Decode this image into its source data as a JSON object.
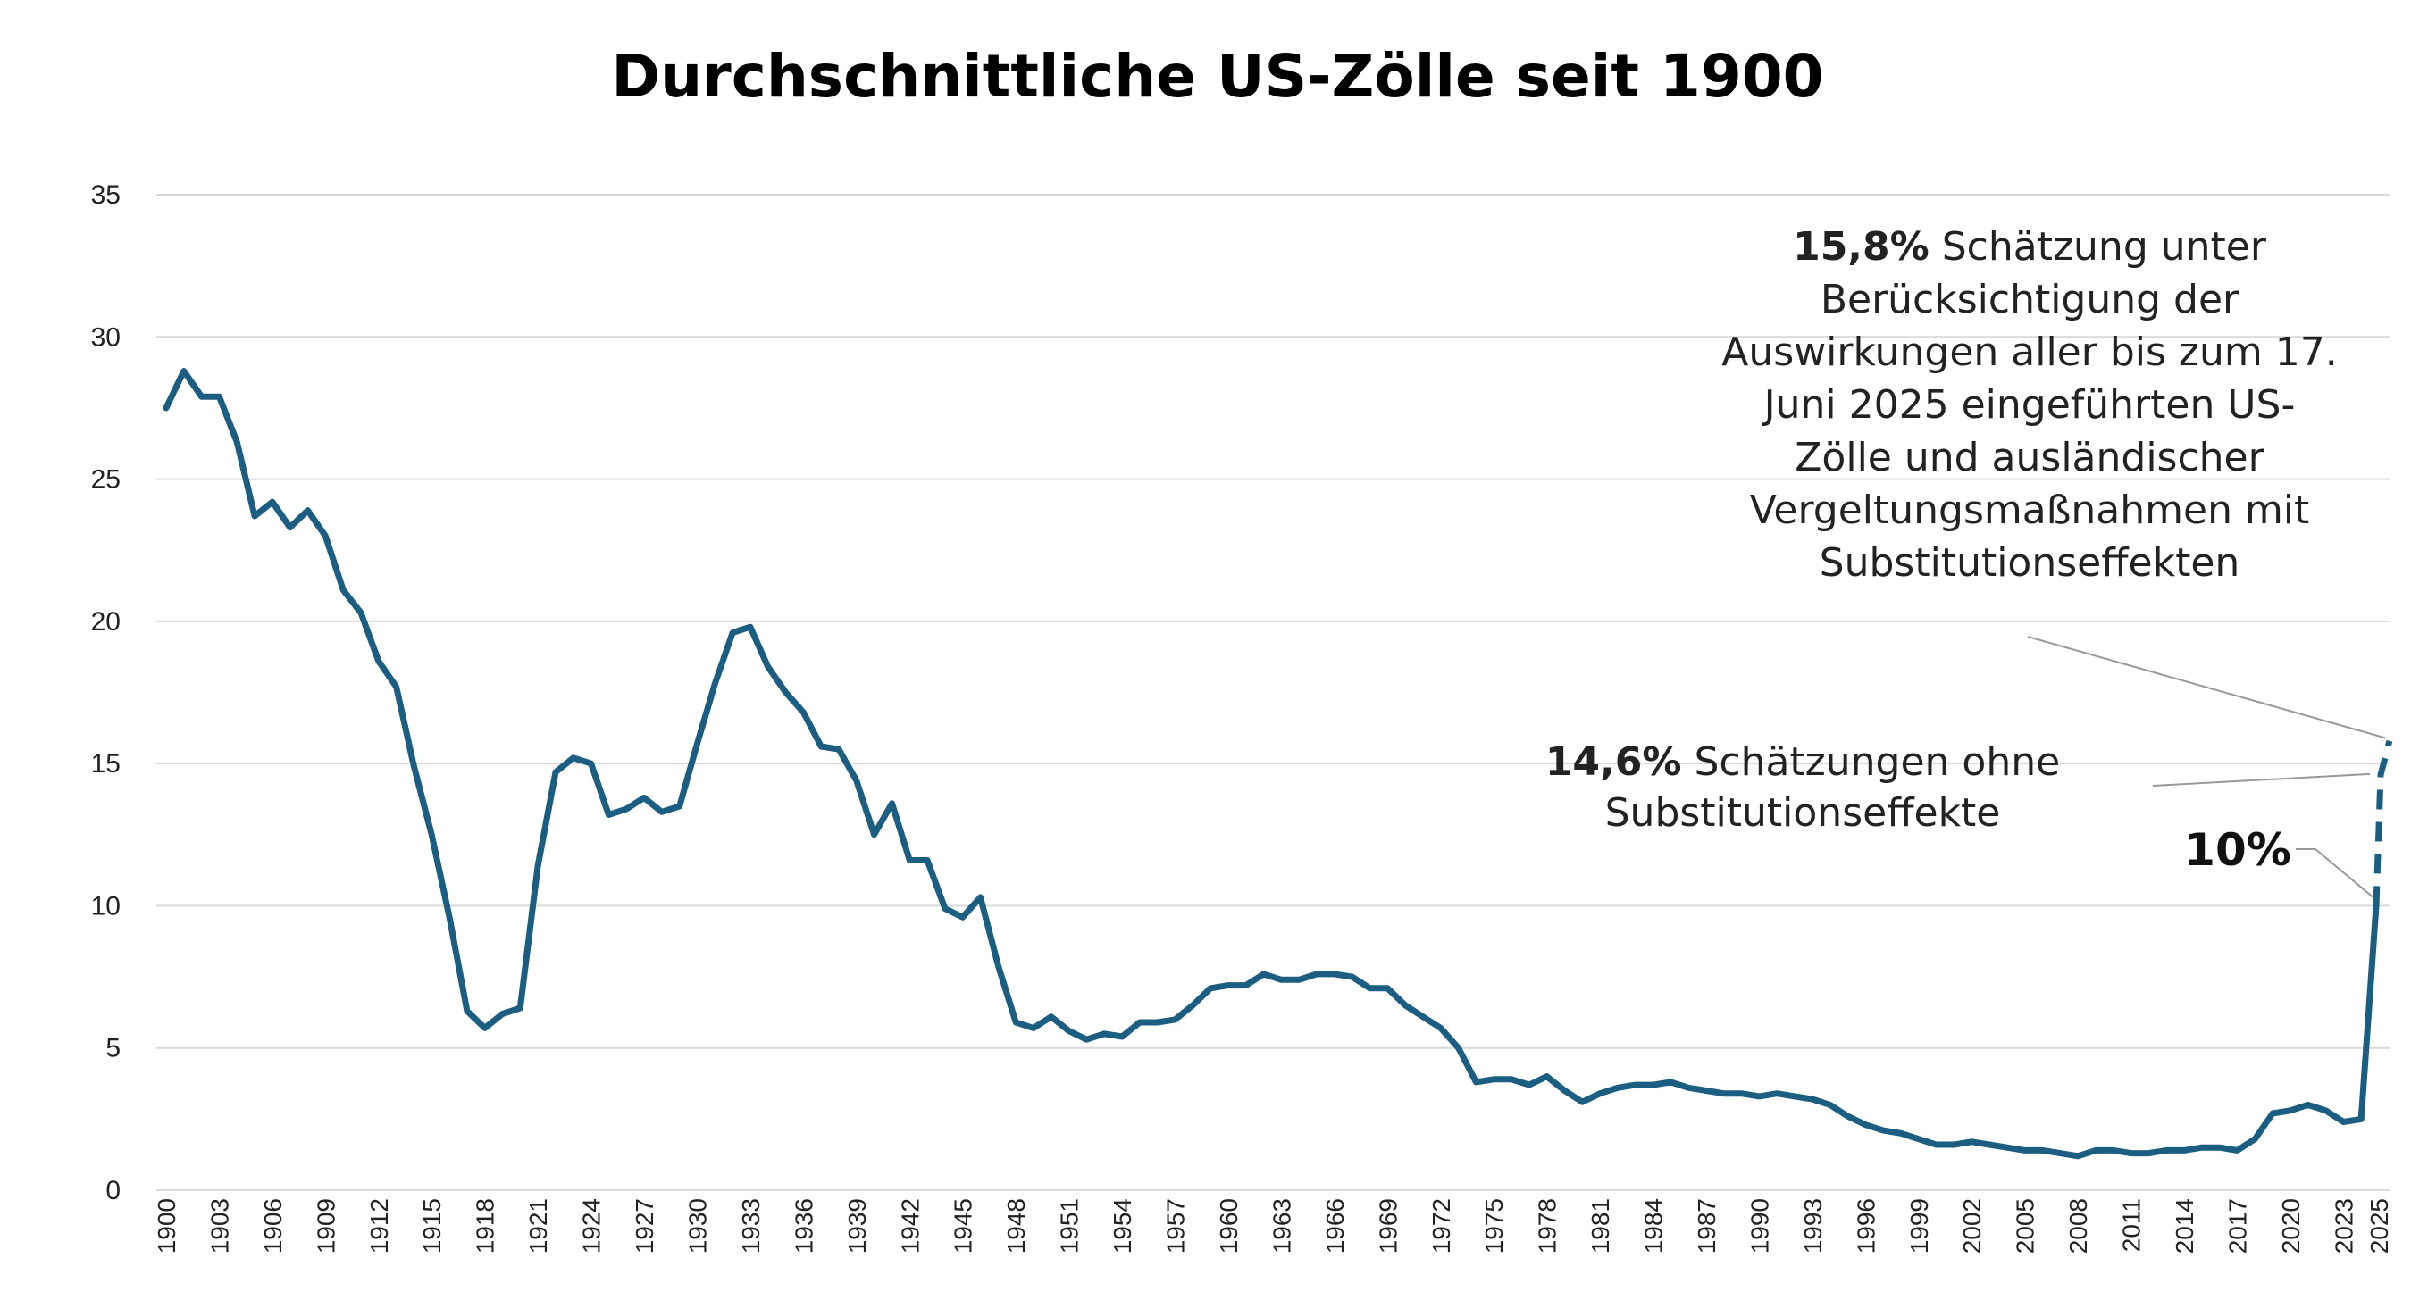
{
  "chart_data": {
    "type": "line",
    "title": "Durchschnittliche US-Zölle seit 1900",
    "xlabel": "",
    "ylabel": "",
    "ylim": [
      0,
      35
    ],
    "yticks": [
      0,
      5,
      10,
      15,
      20,
      25,
      30,
      35
    ],
    "xlim": [
      1900,
      2025
    ],
    "xticks": [
      1900,
      1903,
      1906,
      1909,
      1912,
      1915,
      1918,
      1921,
      1924,
      1927,
      1930,
      1933,
      1936,
      1939,
      1942,
      1945,
      1948,
      1951,
      1954,
      1957,
      1960,
      1963,
      1966,
      1969,
      1972,
      1975,
      1978,
      1981,
      1984,
      1987,
      1990,
      1993,
      1996,
      1999,
      2002,
      2005,
      2008,
      2011,
      2014,
      2017,
      2020,
      2023,
      2025
    ],
    "grid": true,
    "colors": {
      "line": "#1b5e82",
      "grid": "#d9d9d9",
      "leader": "#999999"
    },
    "series": [
      {
        "style": "solid",
        "x": [
          1900,
          1901,
          1902,
          1903,
          1904,
          1905,
          1906,
          1907,
          1908,
          1909,
          1910,
          1911,
          1912,
          1913,
          1914,
          1915,
          1916,
          1917,
          1918,
          1919,
          1920,
          1921,
          1922,
          1923,
          1924,
          1925,
          1926,
          1927,
          1928,
          1929,
          1930,
          1931,
          1932,
          1933,
          1934,
          1935,
          1936,
          1937,
          1938,
          1939,
          1940,
          1941,
          1942,
          1943,
          1944,
          1945,
          1946,
          1947,
          1948,
          1949,
          1950,
          1951,
          1952,
          1953,
          1954,
          1955,
          1956,
          1957,
          1958,
          1959,
          1960,
          1961,
          1962,
          1963,
          1964,
          1965,
          1966,
          1967,
          1968,
          1969,
          1970,
          1971,
          1972,
          1973,
          1974,
          1975,
          1976,
          1977,
          1978,
          1979,
          1980,
          1981,
          1982,
          1983,
          1984,
          1985,
          1986,
          1987,
          1988,
          1989,
          1990,
          1991,
          1992,
          1993,
          1994,
          1995,
          1996,
          1997,
          1998,
          1999,
          2000,
          2001,
          2002,
          2003,
          2004,
          2005,
          2006,
          2007,
          2008,
          2009,
          2010,
          2011,
          2012,
          2013,
          2014,
          2015,
          2016,
          2017,
          2018,
          2019,
          2020,
          2021,
          2022,
          2023,
          2024
        ],
        "y": [
          27.5,
          28.8,
          27.9,
          27.9,
          26.3,
          23.7,
          24.2,
          23.3,
          23.9,
          23.0,
          21.1,
          20.3,
          18.6,
          17.7,
          14.9,
          12.5,
          9.6,
          6.3,
          5.7,
          6.2,
          6.4,
          11.4,
          14.7,
          15.2,
          15.0,
          13.2,
          13.4,
          13.8,
          13.3,
          13.5,
          15.7,
          17.8,
          19.6,
          19.8,
          18.4,
          17.5,
          16.8,
          15.6,
          15.5,
          14.4,
          12.5,
          13.6,
          11.6,
          11.6,
          9.9,
          9.6,
          10.3,
          7.9,
          5.9,
          5.7,
          6.1,
          5.6,
          5.3,
          5.5,
          5.4,
          5.9,
          5.9,
          6.0,
          6.5,
          7.1,
          7.2,
          7.2,
          7.6,
          7.4,
          7.4,
          7.6,
          7.6,
          7.5,
          7.1,
          7.1,
          6.5,
          6.1,
          5.7,
          5.0,
          3.8,
          3.9,
          3.9,
          3.7,
          4.0,
          3.5,
          3.1,
          3.4,
          3.6,
          3.7,
          3.7,
          3.8,
          3.6,
          3.5,
          3.4,
          3.4,
          3.3,
          3.4,
          3.3,
          3.2,
          3.0,
          2.6,
          2.3,
          2.1,
          2.0,
          1.8,
          1.6,
          1.6,
          1.7,
          1.6,
          1.5,
          1.4,
          1.4,
          1.3,
          1.2,
          1.4,
          1.4,
          1.3,
          1.3,
          1.4,
          1.4,
          1.5,
          1.5,
          1.4,
          1.8,
          2.7,
          2.8,
          3.0,
          2.8,
          2.4,
          2.5
        ]
      },
      {
        "style": "solid",
        "x": [
          2024,
          2024.85
        ],
        "y": [
          2.5,
          10.0
        ]
      },
      {
        "style": "dashed",
        "x": [
          2024.85,
          2025.1,
          2025.6
        ],
        "y": [
          10.0,
          14.6,
          15.8
        ]
      }
    ],
    "annotations": [
      {
        "lines": [
          [
            {
              "text": "15,8%",
              "bold": true
            },
            {
              "text": " Schätzung unter",
              "bold": false
            }
          ],
          [
            {
              "text": "Berücksichtigung der",
              "bold": false
            }
          ],
          [
            {
              "text": "Auswirkungen aller bis zum 17.",
              "bold": false
            }
          ],
          [
            {
              "text": "Juni 2025 eingeführten US-",
              "bold": false
            }
          ],
          [
            {
              "text": "Zölle und ausländischer",
              "bold": false
            }
          ],
          [
            {
              "text": "Vergeltungsmaßnahmen mit",
              "bold": false
            }
          ],
          [
            {
              "text": "Substitutionseffekten",
              "bold": false
            }
          ]
        ],
        "value": 15.8
      },
      {
        "lines": [
          [
            {
              "text": "14,6%",
              "bold": true
            },
            {
              "text": " Schätzungen ohne",
              "bold": false
            }
          ],
          [
            {
              "text": "Substitutionseffekte",
              "bold": false
            }
          ]
        ],
        "value": 14.6
      },
      {
        "lines": [
          [
            {
              "text": "10%",
              "bold": true
            }
          ]
        ],
        "value": 10
      }
    ]
  }
}
